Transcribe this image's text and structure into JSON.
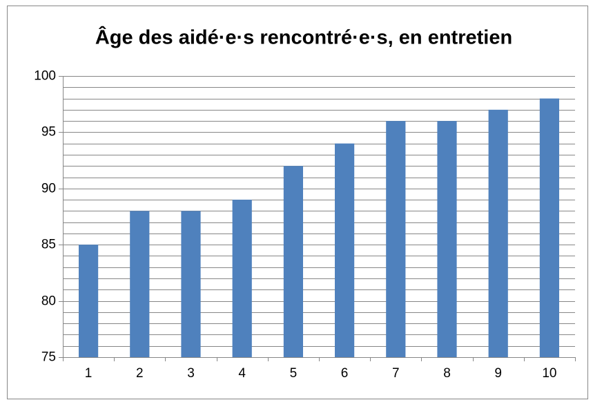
{
  "chart_data": {
    "type": "bar",
    "title": "Âge des aidé·e·s rencontré·e·s, en entretien",
    "categories": [
      "1",
      "2",
      "3",
      "4",
      "5",
      "6",
      "7",
      "8",
      "9",
      "10"
    ],
    "values": [
      85,
      88,
      88,
      89,
      92,
      94,
      96,
      96,
      97,
      98
    ],
    "color": "#4f81bd",
    "ylim": [
      75,
      100
    ],
    "yticks": [
      75,
      80,
      85,
      90,
      95,
      100
    ],
    "minor_yticks": [
      76,
      77,
      78,
      79,
      81,
      82,
      83,
      84,
      86,
      87,
      88,
      89,
      91,
      92,
      93,
      94,
      96,
      97,
      98,
      99
    ],
    "grid": true
  }
}
